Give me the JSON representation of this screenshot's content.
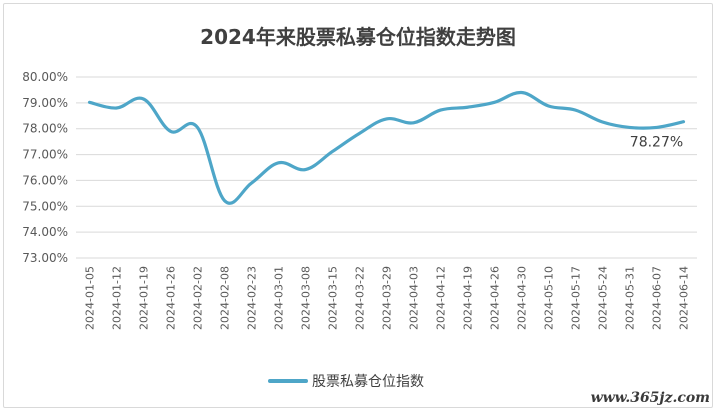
{
  "chart_data": {
    "type": "line",
    "title": "2024年来股票私募仓位指数走势图",
    "xlabel": "",
    "ylabel": "",
    "ylim": [
      73,
      80
    ],
    "y_ticks": [
      "73.00%",
      "74.00%",
      "75.00%",
      "76.00%",
      "77.00%",
      "78.00%",
      "79.00%",
      "80.00%"
    ],
    "grid": true,
    "legend_position": "bottom",
    "categories": [
      "2024-01-05",
      "2024-01-12",
      "2024-01-19",
      "2024-01-26",
      "2024-02-02",
      "2024-02-08",
      "2024-02-23",
      "2024-03-01",
      "2024-03-08",
      "2024-03-15",
      "2024-03-22",
      "2024-03-29",
      "2024-04-03",
      "2024-04-12",
      "2024-04-19",
      "2024-04-26",
      "2024-04-30",
      "2024-05-10",
      "2024-05-17",
      "2024-05-24",
      "2024-05-31",
      "2024-06-07",
      "2024-06-14"
    ],
    "series": [
      {
        "name": "股票私募仓位指数",
        "color": "#4ea6c8",
        "values": [
          79.02,
          78.8,
          79.15,
          77.9,
          78.05,
          75.22,
          75.9,
          76.68,
          76.42,
          77.12,
          77.82,
          78.38,
          78.23,
          78.72,
          78.83,
          79.02,
          79.4,
          78.88,
          78.72,
          78.26,
          78.05,
          78.05,
          78.27
        ]
      }
    ],
    "annotations": [
      {
        "text": "78.27%"
      }
    ]
  },
  "watermark": "www.365jz.com"
}
